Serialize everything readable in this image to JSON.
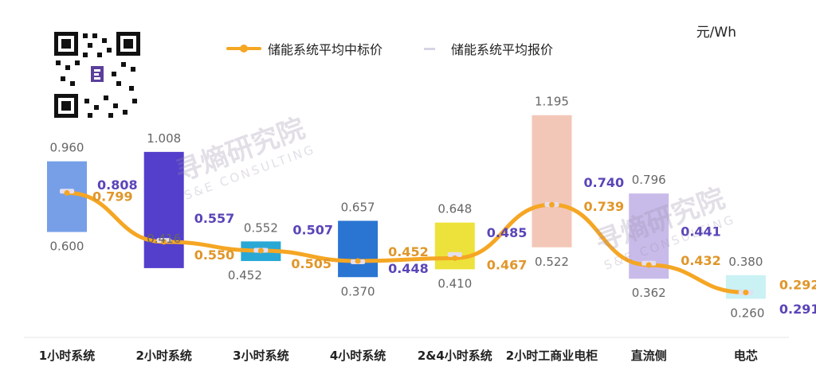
{
  "unit": "元/Wh",
  "watermark": {
    "cn": "寻熵研究院",
    "en": "S&E CONSULTING"
  },
  "chart_data": {
    "type": "range-bar+line",
    "categories": [
      "1小时系统",
      "2小时系统",
      "3小时系统",
      "4小时系统",
      "2&4小时系统",
      "2小时工商业电柜",
      "直流侧",
      "电芯"
    ],
    "series": [
      {
        "name": "储能系统平均中标价",
        "type": "line",
        "color": "#f5a623",
        "values": [
          0.799,
          0.55,
          0.505,
          0.452,
          0.467,
          0.739,
          0.432,
          0.292
        ]
      },
      {
        "name": "储能系统平均报价",
        "type": "marker",
        "color": "#d9d3e6",
        "values": [
          0.808,
          0.557,
          0.507,
          0.448,
          0.485,
          0.74,
          0.441,
          0.291
        ]
      }
    ],
    "ranges": [
      {
        "high": 0.96,
        "low": 0.6,
        "color": "#6f9ae6"
      },
      {
        "high": 1.008,
        "low": 0.416,
        "color": "#4a35c8"
      },
      {
        "high": 0.552,
        "low": 0.452,
        "color": "#1fa3d3"
      },
      {
        "high": 0.657,
        "low": 0.37,
        "color": "#1f6ed0"
      },
      {
        "high": 0.648,
        "low": 0.41,
        "color": "#ece030"
      },
      {
        "high": 1.195,
        "low": 0.522,
        "color": "#f2c4b3"
      },
      {
        "high": 0.796,
        "low": 0.362,
        "color": "#c6b7e8"
      },
      {
        "high": 0.38,
        "low": 0.26,
        "color": "#c7f0f3"
      }
    ],
    "range_labels": [
      {
        "high": "0.960",
        "low": "0.600"
      },
      {
        "high": "1.008",
        "low": "0.416"
      },
      {
        "high": "0.552",
        "low": "0.452"
      },
      {
        "high": "0.657",
        "low": "0.370"
      },
      {
        "high": "0.648",
        "low": "0.410"
      },
      {
        "high": "1.195",
        "low": "0.522"
      },
      {
        "high": "0.796",
        "low": "0.362"
      },
      {
        "high": "0.380",
        "low": "0.260"
      }
    ],
    "bid_labels": [
      "0.799",
      "0.550",
      "0.505",
      "0.452",
      "0.467",
      "0.739",
      "0.432",
      "0.292"
    ],
    "quote_labels": [
      "0.808",
      "0.557",
      "0.507",
      "0.448",
      "0.485",
      "0.740",
      "0.441",
      "0.291"
    ],
    "colors": {
      "bid_line": "#f5a623",
      "bid_label": "#e0962a",
      "quote_label": "#5b45b8",
      "range_label": "#666666",
      "quote_marker": "#e4def0"
    },
    "legend": "top",
    "grid": false
  }
}
